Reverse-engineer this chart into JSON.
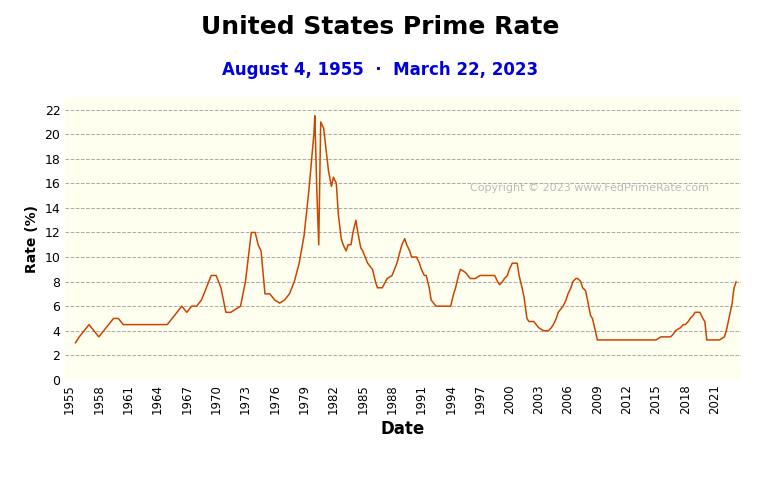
{
  "title": "United States Prime Rate",
  "subtitle": "August 4, 1955  ·  March 22, 2023",
  "xlabel": "Date",
  "ylabel": "Rate (%)",
  "line_color": "#cc4400",
  "background_color": "#ffffff",
  "plot_bg_color": "#fffff0",
  "title_fontsize": 18,
  "subtitle_fontsize": 12,
  "subtitle_color": "#0000dd",
  "copyright_text": "Copyright © 2023 www.FedPrimeRate.com",
  "copyright_color": "#bbbbbb",
  "ylim": [
    0,
    23
  ],
  "yticks": [
    0,
    2,
    4,
    6,
    8,
    10,
    12,
    14,
    16,
    18,
    20,
    22
  ],
  "xtick_years": [
    1955,
    1958,
    1961,
    1964,
    1967,
    1970,
    1973,
    1976,
    1979,
    1982,
    1985,
    1988,
    1991,
    1994,
    1997,
    2000,
    2003,
    2006,
    2009,
    2012,
    2015,
    2018,
    2021
  ],
  "data": [
    [
      1955.6,
      3.0
    ],
    [
      1956.0,
      3.5
    ],
    [
      1956.5,
      4.0
    ],
    [
      1957.0,
      4.5
    ],
    [
      1957.5,
      4.0
    ],
    [
      1958.0,
      3.5
    ],
    [
      1958.5,
      4.0
    ],
    [
      1959.0,
      4.5
    ],
    [
      1959.5,
      5.0
    ],
    [
      1960.0,
      5.0
    ],
    [
      1960.5,
      4.5
    ],
    [
      1961.0,
      4.5
    ],
    [
      1962.0,
      4.5
    ],
    [
      1963.0,
      4.5
    ],
    [
      1964.0,
      4.5
    ],
    [
      1965.0,
      4.5
    ],
    [
      1965.5,
      5.0
    ],
    [
      1966.0,
      5.5
    ],
    [
      1966.5,
      6.0
    ],
    [
      1967.0,
      5.5
    ],
    [
      1967.5,
      6.0
    ],
    [
      1968.0,
      6.0
    ],
    [
      1968.5,
      6.5
    ],
    [
      1969.0,
      7.5
    ],
    [
      1969.5,
      8.5
    ],
    [
      1970.0,
      8.5
    ],
    [
      1970.5,
      7.5
    ],
    [
      1971.0,
      5.5
    ],
    [
      1971.5,
      5.5
    ],
    [
      1972.0,
      5.75
    ],
    [
      1972.5,
      6.0
    ],
    [
      1973.0,
      8.0
    ],
    [
      1973.3,
      10.0
    ],
    [
      1973.6,
      12.0
    ],
    [
      1974.0,
      12.0
    ],
    [
      1974.3,
      11.0
    ],
    [
      1974.6,
      10.5
    ],
    [
      1975.0,
      7.0
    ],
    [
      1975.5,
      7.0
    ],
    [
      1976.0,
      6.5
    ],
    [
      1976.5,
      6.25
    ],
    [
      1977.0,
      6.5
    ],
    [
      1977.5,
      7.0
    ],
    [
      1978.0,
      8.0
    ],
    [
      1978.5,
      9.5
    ],
    [
      1979.0,
      11.75
    ],
    [
      1979.5,
      15.5
    ],
    [
      1980.0,
      20.0
    ],
    [
      1980.1,
      21.5
    ],
    [
      1980.3,
      15.5
    ],
    [
      1980.5,
      11.0
    ],
    [
      1980.7,
      21.0
    ],
    [
      1981.0,
      20.5
    ],
    [
      1981.5,
      17.0
    ],
    [
      1981.8,
      15.75
    ],
    [
      1982.0,
      16.5
    ],
    [
      1982.3,
      16.0
    ],
    [
      1982.5,
      13.5
    ],
    [
      1982.8,
      11.5
    ],
    [
      1983.0,
      11.0
    ],
    [
      1983.3,
      10.5
    ],
    [
      1983.5,
      11.0
    ],
    [
      1983.8,
      11.0
    ],
    [
      1984.0,
      12.0
    ],
    [
      1984.3,
      13.0
    ],
    [
      1984.5,
      12.0
    ],
    [
      1984.8,
      10.75
    ],
    [
      1985.0,
      10.5
    ],
    [
      1985.5,
      9.5
    ],
    [
      1986.0,
      9.0
    ],
    [
      1986.3,
      8.0
    ],
    [
      1986.5,
      7.5
    ],
    [
      1987.0,
      7.5
    ],
    [
      1987.5,
      8.25
    ],
    [
      1988.0,
      8.5
    ],
    [
      1988.5,
      9.5
    ],
    [
      1989.0,
      11.0
    ],
    [
      1989.3,
      11.5
    ],
    [
      1989.5,
      11.0
    ],
    [
      1989.8,
      10.5
    ],
    [
      1990.0,
      10.0
    ],
    [
      1990.5,
      10.0
    ],
    [
      1990.8,
      9.5
    ],
    [
      1991.0,
      9.0
    ],
    [
      1991.3,
      8.5
    ],
    [
      1991.5,
      8.5
    ],
    [
      1991.8,
      7.5
    ],
    [
      1992.0,
      6.5
    ],
    [
      1992.5,
      6.0
    ],
    [
      1993.0,
      6.0
    ],
    [
      1993.5,
      6.0
    ],
    [
      1994.0,
      6.0
    ],
    [
      1994.3,
      7.0
    ],
    [
      1994.5,
      7.5
    ],
    [
      1994.8,
      8.5
    ],
    [
      1995.0,
      9.0
    ],
    [
      1995.5,
      8.75
    ],
    [
      1996.0,
      8.25
    ],
    [
      1996.5,
      8.25
    ],
    [
      1997.0,
      8.5
    ],
    [
      1997.5,
      8.5
    ],
    [
      1998.0,
      8.5
    ],
    [
      1998.5,
      8.5
    ],
    [
      1998.8,
      8.0
    ],
    [
      1999.0,
      7.75
    ],
    [
      1999.3,
      8.0
    ],
    [
      1999.5,
      8.25
    ],
    [
      1999.8,
      8.5
    ],
    [
      2000.0,
      9.0
    ],
    [
      2000.3,
      9.5
    ],
    [
      2000.5,
      9.5
    ],
    [
      2000.8,
      9.5
    ],
    [
      2001.0,
      8.5
    ],
    [
      2001.3,
      7.5
    ],
    [
      2001.5,
      6.75
    ],
    [
      2001.8,
      5.0
    ],
    [
      2002.0,
      4.75
    ],
    [
      2002.5,
      4.75
    ],
    [
      2003.0,
      4.25
    ],
    [
      2003.5,
      4.0
    ],
    [
      2004.0,
      4.0
    ],
    [
      2004.3,
      4.25
    ],
    [
      2004.5,
      4.5
    ],
    [
      2004.8,
      5.0
    ],
    [
      2005.0,
      5.5
    ],
    [
      2005.5,
      6.0
    ],
    [
      2005.8,
      6.5
    ],
    [
      2006.0,
      7.0
    ],
    [
      2006.3,
      7.5
    ],
    [
      2006.5,
      8.0
    ],
    [
      2006.8,
      8.25
    ],
    [
      2007.0,
      8.25
    ],
    [
      2007.3,
      8.0
    ],
    [
      2007.5,
      7.5
    ],
    [
      2007.8,
      7.25
    ],
    [
      2008.0,
      6.5
    ],
    [
      2008.3,
      5.25
    ],
    [
      2008.5,
      5.0
    ],
    [
      2008.8,
      4.0
    ],
    [
      2009.0,
      3.25
    ],
    [
      2009.5,
      3.25
    ],
    [
      2010.0,
      3.25
    ],
    [
      2011.0,
      3.25
    ],
    [
      2012.0,
      3.25
    ],
    [
      2013.0,
      3.25
    ],
    [
      2014.0,
      3.25
    ],
    [
      2015.0,
      3.25
    ],
    [
      2015.5,
      3.5
    ],
    [
      2016.0,
      3.5
    ],
    [
      2016.5,
      3.5
    ],
    [
      2016.8,
      3.75
    ],
    [
      2017.0,
      4.0
    ],
    [
      2017.5,
      4.25
    ],
    [
      2017.8,
      4.5
    ],
    [
      2018.0,
      4.5
    ],
    [
      2018.3,
      4.75
    ],
    [
      2018.5,
      5.0
    ],
    [
      2018.8,
      5.25
    ],
    [
      2019.0,
      5.5
    ],
    [
      2019.5,
      5.5
    ],
    [
      2019.8,
      5.0
    ],
    [
      2020.0,
      4.75
    ],
    [
      2020.2,
      3.25
    ],
    [
      2020.3,
      3.25
    ],
    [
      2021.0,
      3.25
    ],
    [
      2021.5,
      3.25
    ],
    [
      2022.0,
      3.5
    ],
    [
      2022.2,
      4.0
    ],
    [
      2022.4,
      4.75
    ],
    [
      2022.6,
      5.5
    ],
    [
      2022.8,
      6.25
    ],
    [
      2022.9,
      7.0
    ],
    [
      2023.0,
      7.5
    ],
    [
      2023.2,
      8.0
    ]
  ]
}
